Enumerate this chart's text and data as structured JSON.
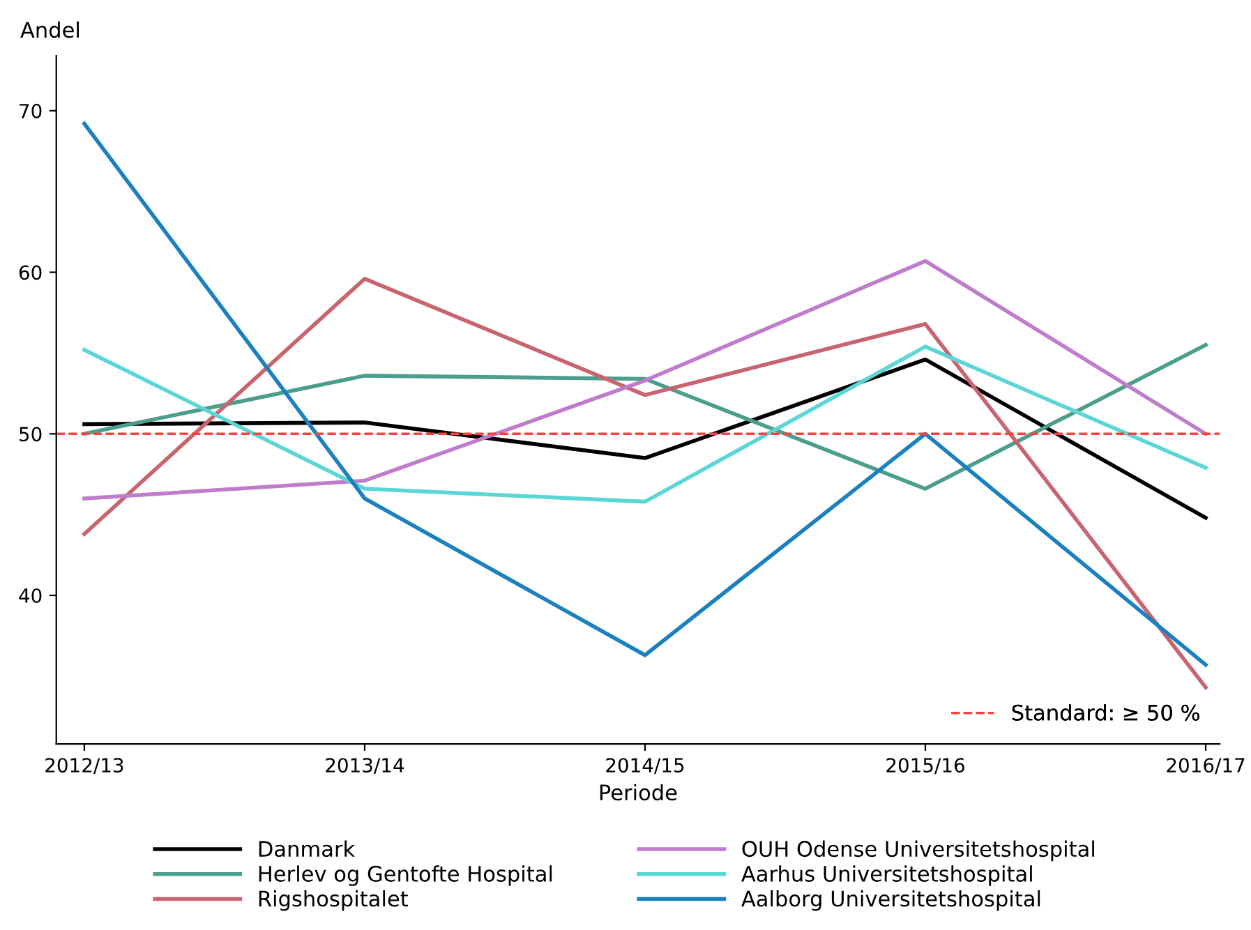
{
  "chart_data": {
    "type": "line",
    "xlabel": "Periode",
    "ylabel": "Andel",
    "categories": [
      "2012/13",
      "2013/14",
      "2014/15",
      "2015/16",
      "2016/17"
    ],
    "series": [
      {
        "name": "Danmark",
        "color": "#000000",
        "values": [
          50.6,
          50.7,
          48.5,
          54.6,
          44.8
        ]
      },
      {
        "name": "Herlev og Gentofte Hospital",
        "color": "#4c9e8c",
        "values": [
          50.0,
          53.6,
          53.4,
          46.6,
          55.5
        ]
      },
      {
        "name": "Rigshospitalet",
        "color": "#c8646e",
        "values": [
          43.8,
          59.6,
          52.4,
          56.8,
          34.3
        ]
      },
      {
        "name": "OUH Odense Universitetshospital",
        "color": "#c07ccc",
        "values": [
          46.0,
          47.1,
          53.3,
          60.7,
          50.0
        ]
      },
      {
        "name": "Aarhus Universitetshospital",
        "color": "#5ad6d6",
        "values": [
          55.2,
          46.6,
          45.8,
          55.4,
          47.9
        ]
      },
      {
        "name": "Aalborg Universitetshospital",
        "color": "#1a80c0",
        "values": [
          69.2,
          46.0,
          36.3,
          50.0,
          35.7
        ]
      }
    ],
    "ylim": [
      30.8,
      73.4
    ],
    "yticks": [
      40,
      50,
      60,
      70
    ],
    "ref_lines": [
      {
        "axis": "y",
        "value": 50,
        "label": "Standard: ≥ 50 %",
        "color": "#ff4040",
        "line_style": "dashed"
      }
    ],
    "grid": false,
    "legend": "bottom",
    "marker": "none",
    "line_style": "solid"
  }
}
